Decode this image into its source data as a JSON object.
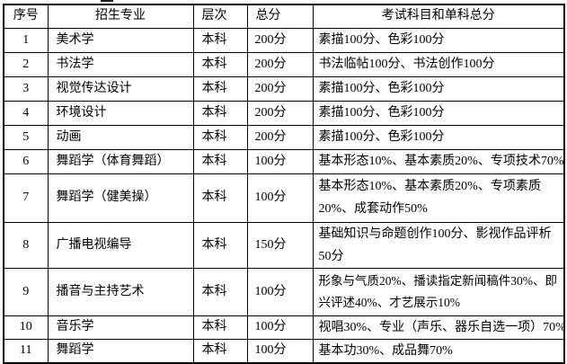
{
  "colors": {
    "background": "#ffffff",
    "border": "#000000",
    "text": "#000000"
  },
  "table": {
    "columns": [
      "序号",
      "招生专业",
      "层次",
      "总分",
      "考试科目和单科总分"
    ],
    "rows": [
      {
        "no": "1",
        "major": "美术学",
        "level": "本科",
        "total": "200分",
        "subjects": "素描100分、色彩100分"
      },
      {
        "no": "2",
        "major": "书法学",
        "level": "本科",
        "total": "200分",
        "subjects": "书法临帖100分、书法创作100分"
      },
      {
        "no": "3",
        "major": "视觉传达设计",
        "level": "本科",
        "total": "200分",
        "subjects": "素描100分、色彩100分"
      },
      {
        "no": "4",
        "major": "环境设计",
        "level": "本科",
        "total": "200分",
        "subjects": "素描100分、色彩100分"
      },
      {
        "no": "5",
        "major": "动画",
        "level": "本科",
        "total": "200分",
        "subjects": "素描100分、色彩100分"
      },
      {
        "no": "6",
        "major": "舞蹈学（体育舞蹈）",
        "level": "本科",
        "total": "100分",
        "subjects": "基本形态10%、基本素质20%、专项技术70%"
      },
      {
        "no": "7",
        "major": "舞蹈学（健美操）",
        "level": "本科",
        "total": "100分",
        "subjects": "基本形态10%、基本素质20%、专项素质20%、成套动作50%"
      },
      {
        "no": "8",
        "major": "广播电视编导",
        "level": "本科",
        "total": "150分",
        "subjects": "基础知识与命题创作100分、影视作品评析50分"
      },
      {
        "no": "9",
        "major": "播音与主持艺术",
        "level": "本科",
        "total": "100分",
        "subjects": "形象与气质20%、播读指定新闻稿件30%、即兴评述40%、才艺展示10%"
      },
      {
        "no": "10",
        "major": "音乐学",
        "level": "本科",
        "total": "100分",
        "subjects": "视唱30%、专业（声乐、器乐自选一项）70%"
      },
      {
        "no": "11",
        "major": "舞蹈学",
        "level": "本科",
        "total": "100分",
        "subjects": "基本功30%、成品舞70%"
      }
    ]
  }
}
